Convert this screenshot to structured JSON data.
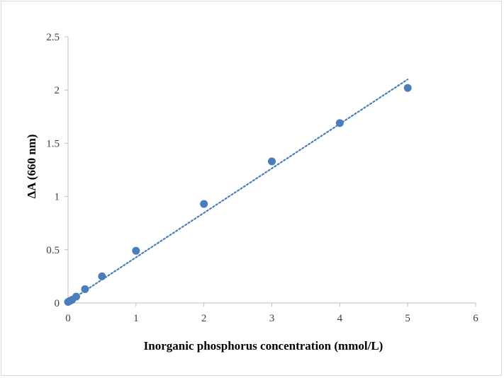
{
  "chart_data": {
    "type": "scatter",
    "title": "",
    "xlabel": "Inorganic phosphorus concentration (mmol/L)",
    "ylabel": "ΔA (660 nm)",
    "xlim": [
      0,
      6
    ],
    "ylim": [
      0,
      2.5
    ],
    "x_ticks": [
      "0",
      "1",
      "2",
      "3",
      "4",
      "5",
      "6"
    ],
    "y_ticks": [
      "0",
      "0.5",
      "1",
      "1.5",
      "2",
      "2.5"
    ],
    "grid": false,
    "legend": "none",
    "series": [
      {
        "color": "#4a7ebb",
        "points": [
          {
            "x": 0,
            "y": 0.01
          },
          {
            "x": 0.03,
            "y": 0.02
          },
          {
            "x": 0.06,
            "y": 0.03
          },
          {
            "x": 0.12,
            "y": 0.06
          },
          {
            "x": 0.25,
            "y": 0.13
          },
          {
            "x": 0.5,
            "y": 0.25
          },
          {
            "x": 1,
            "y": 0.49
          },
          {
            "x": 2,
            "y": 0.93
          },
          {
            "x": 3,
            "y": 1.33
          },
          {
            "x": 4,
            "y": 1.69
          },
          {
            "x": 5,
            "y": 2.02
          }
        ]
      }
    ],
    "trendline": {
      "type": "linear",
      "style": "dotted",
      "color": "#4a7ebb",
      "x_range": [
        0,
        5
      ],
      "y_range": [
        0.01,
        2.1
      ]
    }
  }
}
